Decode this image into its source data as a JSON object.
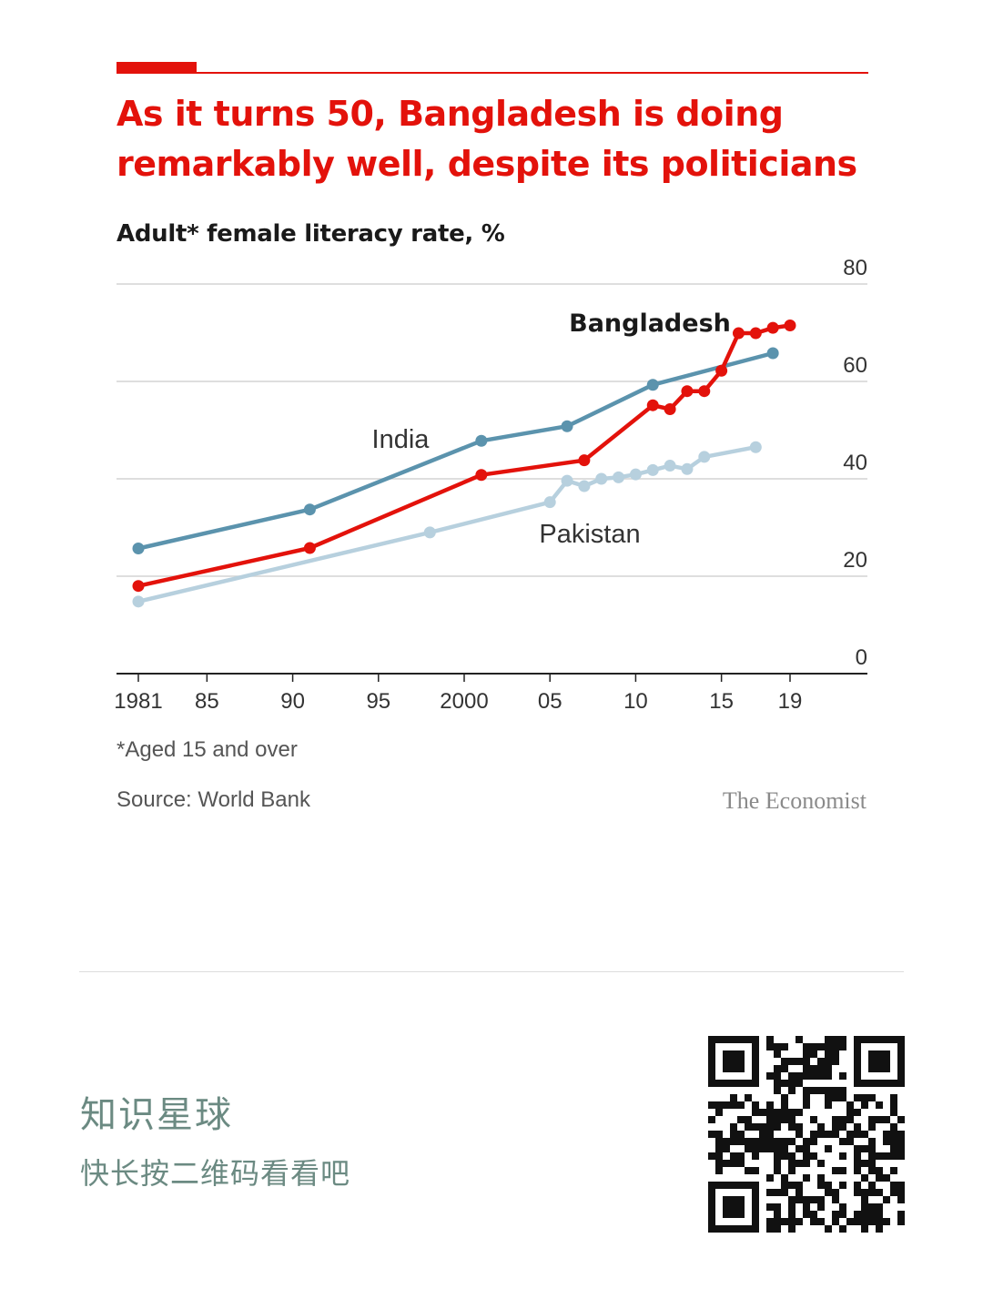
{
  "header": {
    "title": "As it turns 50, Bangladesh is doing remarkably well, despite its politicians",
    "subtitle": "Adult* female literacy rate, %"
  },
  "footer": {
    "footnote": "*Aged 15 and over",
    "source": "Source: World Bank",
    "brand": "The Economist"
  },
  "promo": {
    "title": "知识星球",
    "subtitle": "快长按二维码看看吧",
    "qr_icon": "qr-code-icon"
  },
  "colors": {
    "accent": "#e3120b",
    "india": "#5b93ad",
    "bangladesh": "#e3120b",
    "pakistan": "#b7d0de"
  },
  "chart_data": {
    "type": "line",
    "title": "Adult* female literacy rate, %",
    "xlabel": "",
    "ylabel": "",
    "xlim": [
      1981,
      2019
    ],
    "ylim": [
      0,
      80
    ],
    "yticks": [
      0,
      20,
      40,
      60,
      80
    ],
    "y_axis_side": "right",
    "grid": true,
    "xticks": [
      {
        "value": 1981,
        "label": "1981"
      },
      {
        "value": 1985,
        "label": "85"
      },
      {
        "value": 1990,
        "label": "90"
      },
      {
        "value": 1995,
        "label": "95"
      },
      {
        "value": 2000,
        "label": "2000"
      },
      {
        "value": 2005,
        "label": "05"
      },
      {
        "value": 2010,
        "label": "10"
      },
      {
        "value": 2015,
        "label": "15"
      },
      {
        "value": 2019,
        "label": "19"
      }
    ],
    "series": [
      {
        "name": "India",
        "color": "#5b93ad",
        "points": [
          [
            1981,
            25.7
          ],
          [
            1991,
            33.7
          ],
          [
            2001,
            47.8
          ],
          [
            2006,
            50.8
          ],
          [
            2011,
            59.3
          ],
          [
            2018,
            65.8
          ]
        ]
      },
      {
        "name": "Pakistan",
        "color": "#b7d0de",
        "points": [
          [
            1981,
            14.8
          ],
          [
            1998,
            29.0
          ],
          [
            2005,
            35.2
          ],
          [
            2006,
            39.6
          ],
          [
            2007,
            38.5
          ],
          [
            2008,
            40.0
          ],
          [
            2009,
            40.3
          ],
          [
            2010,
            40.9
          ],
          [
            2011,
            41.8
          ],
          [
            2012,
            42.7
          ],
          [
            2013,
            42.0
          ],
          [
            2014,
            44.5
          ],
          [
            2017,
            46.5
          ]
        ]
      },
      {
        "name": "Bangladesh",
        "color": "#e3120b",
        "points": [
          [
            1981,
            18.0
          ],
          [
            1991,
            25.8
          ],
          [
            2001,
            40.8
          ],
          [
            2007,
            43.8
          ],
          [
            2011,
            55.1
          ],
          [
            2012,
            54.3
          ],
          [
            2013,
            58.0
          ],
          [
            2014,
            58.0
          ],
          [
            2015,
            62.2
          ],
          [
            2016,
            69.9
          ],
          [
            2017,
            69.9
          ],
          [
            2018,
            71.0
          ],
          [
            2019,
            71.5
          ]
        ]
      }
    ]
  }
}
